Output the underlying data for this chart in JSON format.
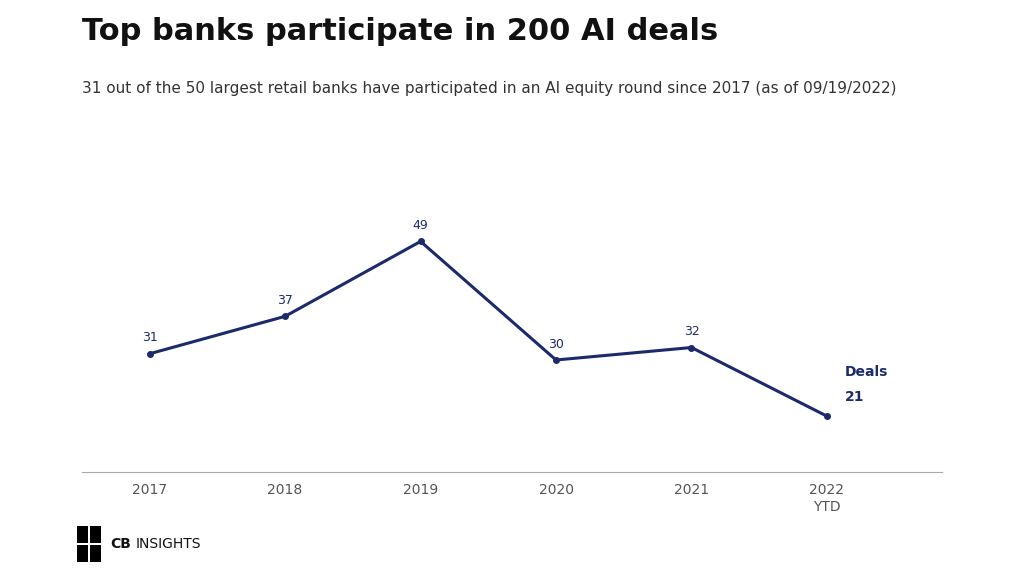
{
  "title": "Top banks participate in 200 AI deals",
  "subtitle": "31 out of the 50 largest retail banks have participated in an AI equity round since 2017 (as of 09/19/2022)",
  "years": [
    2017,
    2018,
    2019,
    2020,
    2021,
    2022
  ],
  "values": [
    31,
    37,
    49,
    30,
    32,
    21
  ],
  "x_tick_labels": [
    "2017",
    "2018",
    "2019",
    "2020",
    "2021",
    "2022\nYTD"
  ],
  "line_color": "#1b2a6b",
  "annotation_color": "#1b2a6b",
  "background_color": "#ffffff",
  "title_fontsize": 22,
  "subtitle_fontsize": 11,
  "annotation_fontsize": 9,
  "deals_label": "Deals",
  "deals_value": "21",
  "logo_cb": "CB",
  "logo_insights": "INSIGHTS"
}
